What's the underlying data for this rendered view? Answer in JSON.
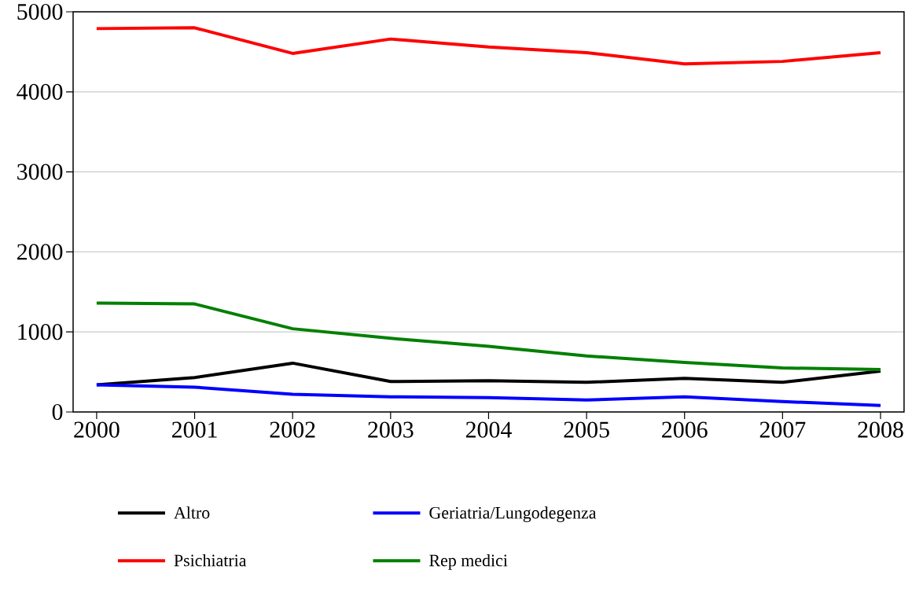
{
  "chart_data": {
    "type": "line",
    "x": [
      2000,
      2001,
      2002,
      2003,
      2004,
      2005,
      2006,
      2007,
      2008
    ],
    "series": [
      {
        "name": "Altro",
        "color": "#000000",
        "values": [
          340,
          430,
          610,
          380,
          390,
          370,
          420,
          370,
          510
        ]
      },
      {
        "name": "Geriatria/Lungodegenza",
        "color": "#0000ff",
        "values": [
          340,
          310,
          220,
          190,
          180,
          150,
          190,
          130,
          80
        ]
      },
      {
        "name": "Psichiatria",
        "color": "#ff0000",
        "values": [
          4790,
          4800,
          4480,
          4660,
          4560,
          4490,
          4350,
          4380,
          4490
        ]
      },
      {
        "name": "Rep medici",
        "color": "#008000",
        "values": [
          1360,
          1350,
          1040,
          920,
          820,
          700,
          620,
          550,
          530
        ]
      }
    ],
    "xlim": [
      1999.76,
      2008.24
    ],
    "ylim": [
      0,
      5000
    ],
    "xticks": [
      2000,
      2001,
      2002,
      2003,
      2004,
      2005,
      2006,
      2007,
      2008
    ],
    "yticks": [
      0,
      1000,
      2000,
      3000,
      4000,
      5000
    ],
    "grid": "y",
    "legend": "bottom",
    "marker": "none",
    "line_style": "solid"
  }
}
